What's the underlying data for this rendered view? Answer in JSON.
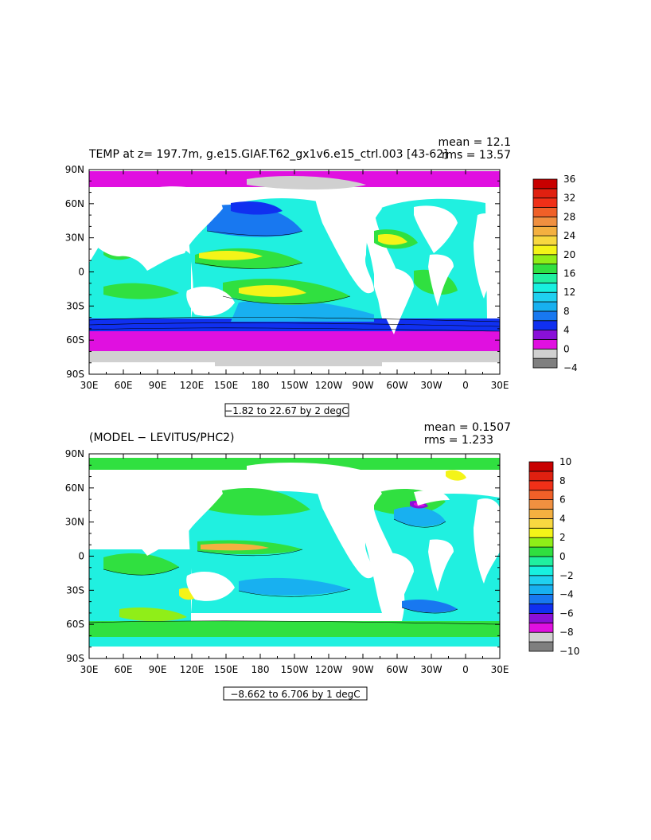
{
  "colors": {
    "ocean_levels": [
      "#7f7f7f",
      "#d0d0d0",
      "#e010e0",
      "#8a10d8",
      "#1030f0",
      "#1878f0",
      "#18b0f0",
      "#20d0f0",
      "#18f0e0",
      "#20f0a0",
      "#30e040",
      "#90ee18",
      "#f4f418",
      "#f8d840",
      "#f4b040",
      "#f09040",
      "#f06028",
      "#f03018",
      "#c80000"
    ]
  },
  "chart_data": [
    {
      "type": "heatmap",
      "title": "TEMP at z= 197.7m, g.e15.GIAF.T62_gx1v6.e15_ctrl.003 [43-62]",
      "stats": [
        "mean = 12.1",
        "rms = 13.57"
      ],
      "range_label": "−1.82 to 22.67 by 2 degC",
      "x_ticks": [
        "30E",
        "60E",
        "90E",
        "120E",
        "150E",
        "180",
        "150W",
        "120W",
        "90W",
        "60W",
        "30W",
        "0",
        "30E"
      ],
      "y_ticks": [
        "90N",
        "60N",
        "30N",
        "0",
        "30S",
        "60S",
        "90S"
      ],
      "colorbar": {
        "levels": [
          -4,
          -2,
          0,
          2,
          4,
          6,
          8,
          10,
          12,
          14,
          16,
          18,
          20,
          22,
          24,
          26,
          28,
          30,
          32,
          34,
          36
        ],
        "labels": [
          "36",
          "32",
          "28",
          "24",
          "20",
          "16",
          "12",
          "8",
          "4",
          "0",
          "−4"
        ],
        "colors": [
          "#7f7f7f",
          "#d0d0d0",
          "#e010e0",
          "#8a10d8",
          "#1030f0",
          "#1878f0",
          "#18b0f0",
          "#20d0f0",
          "#18f0e0",
          "#20f0a0",
          "#30e040",
          "#90ee18",
          "#f4f418",
          "#f8d840",
          "#f4b040",
          "#f09040",
          "#f06028",
          "#f03018",
          "#e02010",
          "#c80000"
        ]
      }
    },
    {
      "type": "heatmap",
      "title": "(MODEL − LEVITUS/PHC2)",
      "stats": [
        "mean = 0.1507",
        "rms = 1.233"
      ],
      "range_label": "−8.662 to 6.706 by 1 degC",
      "x_ticks": [
        "30E",
        "60E",
        "90E",
        "120E",
        "150E",
        "180",
        "150W",
        "120W",
        "90W",
        "60W",
        "30W",
        "0",
        "30E"
      ],
      "y_ticks": [
        "90N",
        "60N",
        "30N",
        "0",
        "30S",
        "60S",
        "90S"
      ],
      "colorbar": {
        "levels": [
          -10,
          -9,
          -8,
          -7,
          -6,
          -5,
          -4,
          -3,
          -2,
          -1,
          0,
          1,
          2,
          3,
          4,
          5,
          6,
          7,
          8,
          9,
          10
        ],
        "labels": [
          "10",
          "8",
          "6",
          "4",
          "2",
          "0",
          "−2",
          "−4",
          "−6",
          "−8",
          "−10"
        ],
        "colors": [
          "#7f7f7f",
          "#d0d0d0",
          "#e010e0",
          "#8a10d8",
          "#1030f0",
          "#1878f0",
          "#18b0f0",
          "#20d0f0",
          "#18f0e0",
          "#20f0a0",
          "#30e040",
          "#90ee18",
          "#f4f418",
          "#f8d840",
          "#f4b040",
          "#f09040",
          "#f06028",
          "#f03018",
          "#e02010",
          "#c80000"
        ]
      }
    }
  ]
}
